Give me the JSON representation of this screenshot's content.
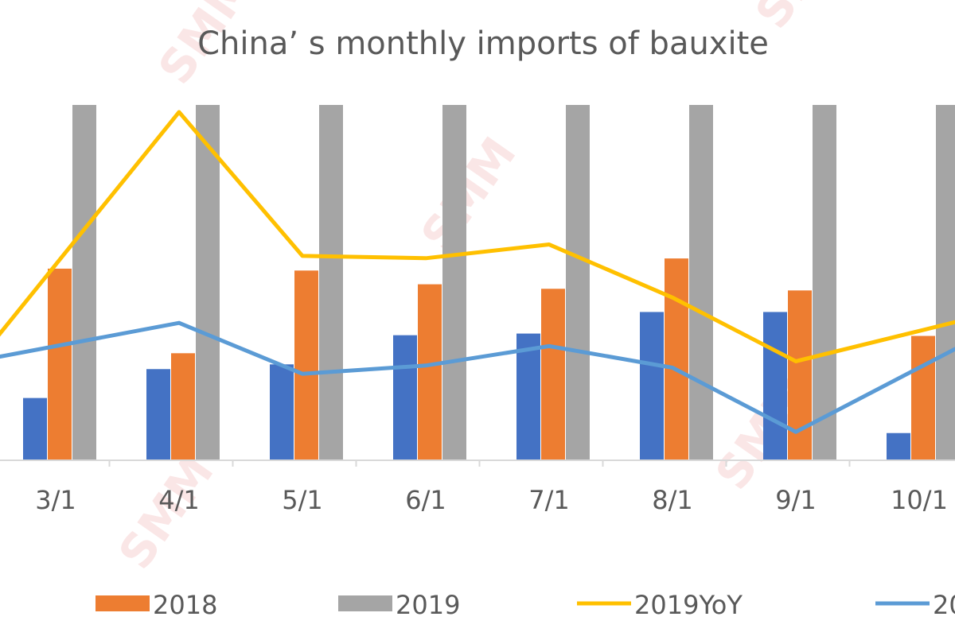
{
  "chart_data": {
    "type": "bar",
    "title": "China’ s monthly imports of bauxite",
    "categories": [
      "3/1",
      "4/1",
      "5/1",
      "6/1",
      "7/1",
      "8/1",
      "9/1",
      "10/1"
    ],
    "grid": false,
    "legend_position": "bottom",
    "series": [
      {
        "values": [
          26.3,
          38.5,
          40.5,
          52.8,
          53.5,
          62.6,
          62.6,
          11.5
        ],
        "kind": "bar",
        "color": "#4472C4"
      },
      {
        "name": "2018",
        "values": [
          80.9,
          45.2,
          80.1,
          74.3,
          72.4,
          85.2,
          71.7,
          52.5
        ],
        "kind": "bar",
        "color": "#ED7D31"
      },
      {
        "name": "2019",
        "values": [
          150.0,
          150.0,
          150.0,
          150.0,
          150.0,
          150.0,
          150.0,
          150.0
        ],
        "kind": "bar",
        "color": "#A5A5A5"
      },
      {
        "name": "2019YoY",
        "values": [
          82.6,
          147.0,
          86.3,
          85.3,
          91.1,
          68.7,
          41.8,
          54.6
        ],
        "kind": "line",
        "color": "#FFC000"
      },
      {
        "name": "20",
        "values": [
          48.2,
          58.0,
          36.5,
          40.0,
          48.2,
          39.1,
          12.0,
          39.1
        ],
        "kind": "line",
        "color": "#5B9BD5"
      }
    ],
    "ylim": [
      0,
      150
    ],
    "xlabel": "",
    "ylabel": ""
  },
  "watermark": "SMM"
}
